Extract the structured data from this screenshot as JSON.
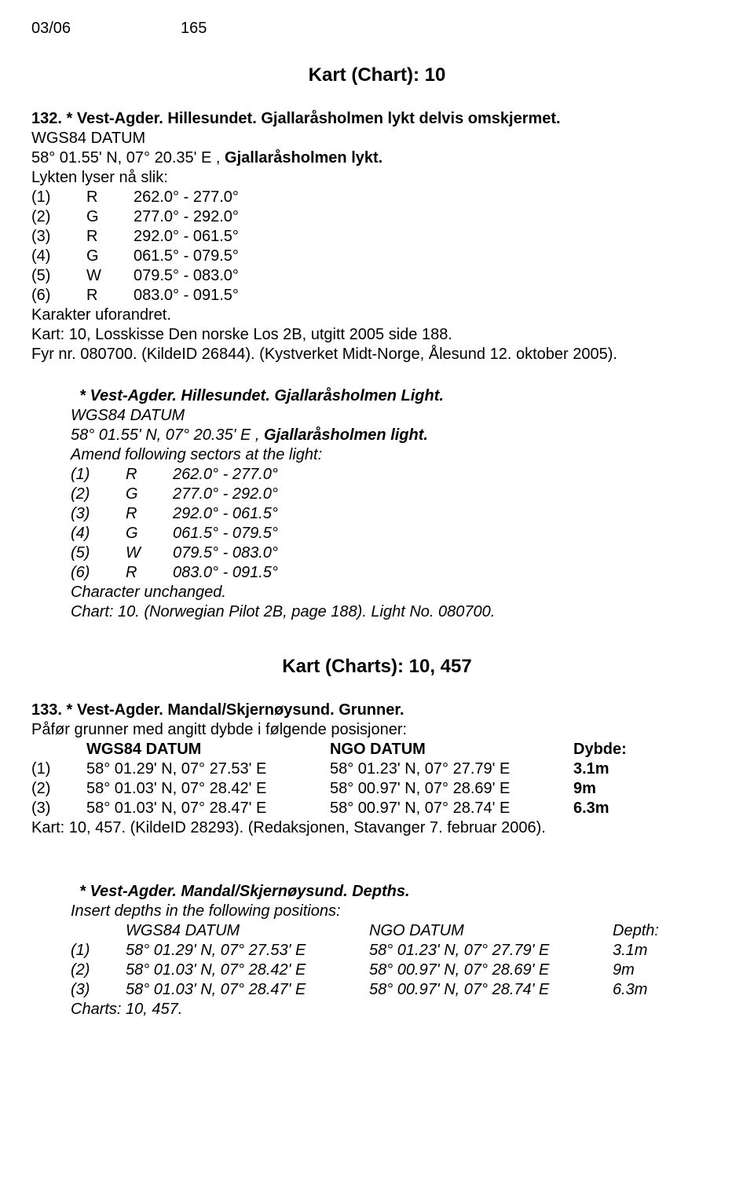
{
  "header": {
    "issue": "03/06",
    "page": "165"
  },
  "chart1_title": "Kart (Chart): 10",
  "s132": {
    "heading_prefix": "132. * ",
    "heading": "Vest-Agder. Hillesundet. Gjallaråsholmen lykt delvis omskjermet.",
    "datum": "WGS84 DATUM",
    "pos_prefix": "58° 01.55' N, 07° 20.35' E , ",
    "pos_bold": "Gjallaråsholmen lykt.",
    "intro": "Lykten lyser nå slik:",
    "rows": [
      {
        "n": "(1)",
        "l": "R",
        "r": "262.0° - 277.0°"
      },
      {
        "n": "(2)",
        "l": "G",
        "r": "277.0° - 292.0°"
      },
      {
        "n": "(3)",
        "l": "R",
        "r": "292.0° - 061.5°"
      },
      {
        "n": "(4)",
        "l": "G",
        "r": "061.5° - 079.5°"
      },
      {
        "n": "(5)",
        "l": "W",
        "r": "079.5° - 083.0°"
      },
      {
        "n": "(6)",
        "l": "R",
        "r": "083.0° - 091.5°"
      }
    ],
    "trail1": "Karakter uforandret.",
    "trail2": "Kart: 10, Losskisse Den norske Los 2B, utgitt 2005 side 188.",
    "trail3": "Fyr nr. 080700. (KildeID 26844). (Kystverket Midt-Norge, Ålesund 12. oktober 2005)."
  },
  "s132b": {
    "heading_prefix": "    * ",
    "heading": "Vest-Agder. Hillesundet. Gjallaråsholmen Light.",
    "datum": "WGS84 DATUM",
    "pos_prefix": "58° 01.55' N, 07° 20.35' E , ",
    "pos_bold": "Gjallaråsholmen light.",
    "intro": "Amend following sectors at the light:",
    "rows": [
      {
        "n": "(1)",
        "l": "R",
        "r": "262.0° - 277.0°"
      },
      {
        "n": "(2)",
        "l": "G",
        "r": "277.0° - 292.0°"
      },
      {
        "n": "(3)",
        "l": "R",
        "r": "292.0° - 061.5°"
      },
      {
        "n": "(4)",
        "l": "G",
        "r": "061.5° - 079.5°"
      },
      {
        "n": "(5)",
        "l": "W",
        "r": "079.5° - 083.0°"
      },
      {
        "n": "(6)",
        "l": "R",
        "r": "083.0° - 091.5°"
      }
    ],
    "trail1": "Character unchanged.",
    "trail2": "Chart: 10. (Norwegian Pilot 2B, page 188). Light No. 080700."
  },
  "chart2_title": "Kart (Charts): 10, 457",
  "s133": {
    "heading_prefix": "133. * ",
    "heading": "Vest-Agder. Mandal/Skjernøysund. Grunner.",
    "intro": "Påfør grunner med angitt dybde i følgende posisjoner:",
    "hdr": {
      "c2": "WGS84 DATUM",
      "c3": "NGO DATUM",
      "c4": "Dybde:"
    },
    "rows": [
      {
        "n": "(1)",
        "w": "58° 01.29' N, 07° 27.53' E",
        "g": "58° 01.23' N, 07° 27.79' E",
        "d": "3.1m"
      },
      {
        "n": "(2)",
        "w": "58° 01.03' N, 07° 28.42' E",
        "g": "58° 00.97' N, 07° 28.69' E",
        "d": "9m"
      },
      {
        "n": "(3)",
        "w": "58° 01.03' N, 07° 28.47' E",
        "g": "58° 00.97' N, 07° 28.74' E",
        "d": "6.3m"
      }
    ],
    "trail": "Kart: 10, 457. (KildeID 28293). (Redaksjonen, Stavanger 7. februar 2006)."
  },
  "s133b": {
    "heading_prefix": "    * ",
    "heading": "Vest-Agder. Mandal/Skjernøysund. Depths.",
    "intro": "Insert depths in the following positions:",
    "hdr": {
      "c2": "WGS84 DATUM",
      "c3": "NGO DATUM",
      "c4": "Depth:"
    },
    "rows": [
      {
        "n": "(1)",
        "w": "58° 01.29' N, 07° 27.53' E",
        "g": "58° 01.23' N, 07° 27.79' E",
        "d": "3.1m"
      },
      {
        "n": "(2)",
        "w": "58° 01.03' N, 07° 28.42' E",
        "g": "58° 00.97' N, 07° 28.69' E",
        "d": "9m"
      },
      {
        "n": "(3)",
        "w": "58° 01.03' N, 07° 28.47' E",
        "g": "58° 00.97' N, 07° 28.74' E",
        "d": "6.3m"
      }
    ],
    "trail": "Charts: 10, 457."
  }
}
